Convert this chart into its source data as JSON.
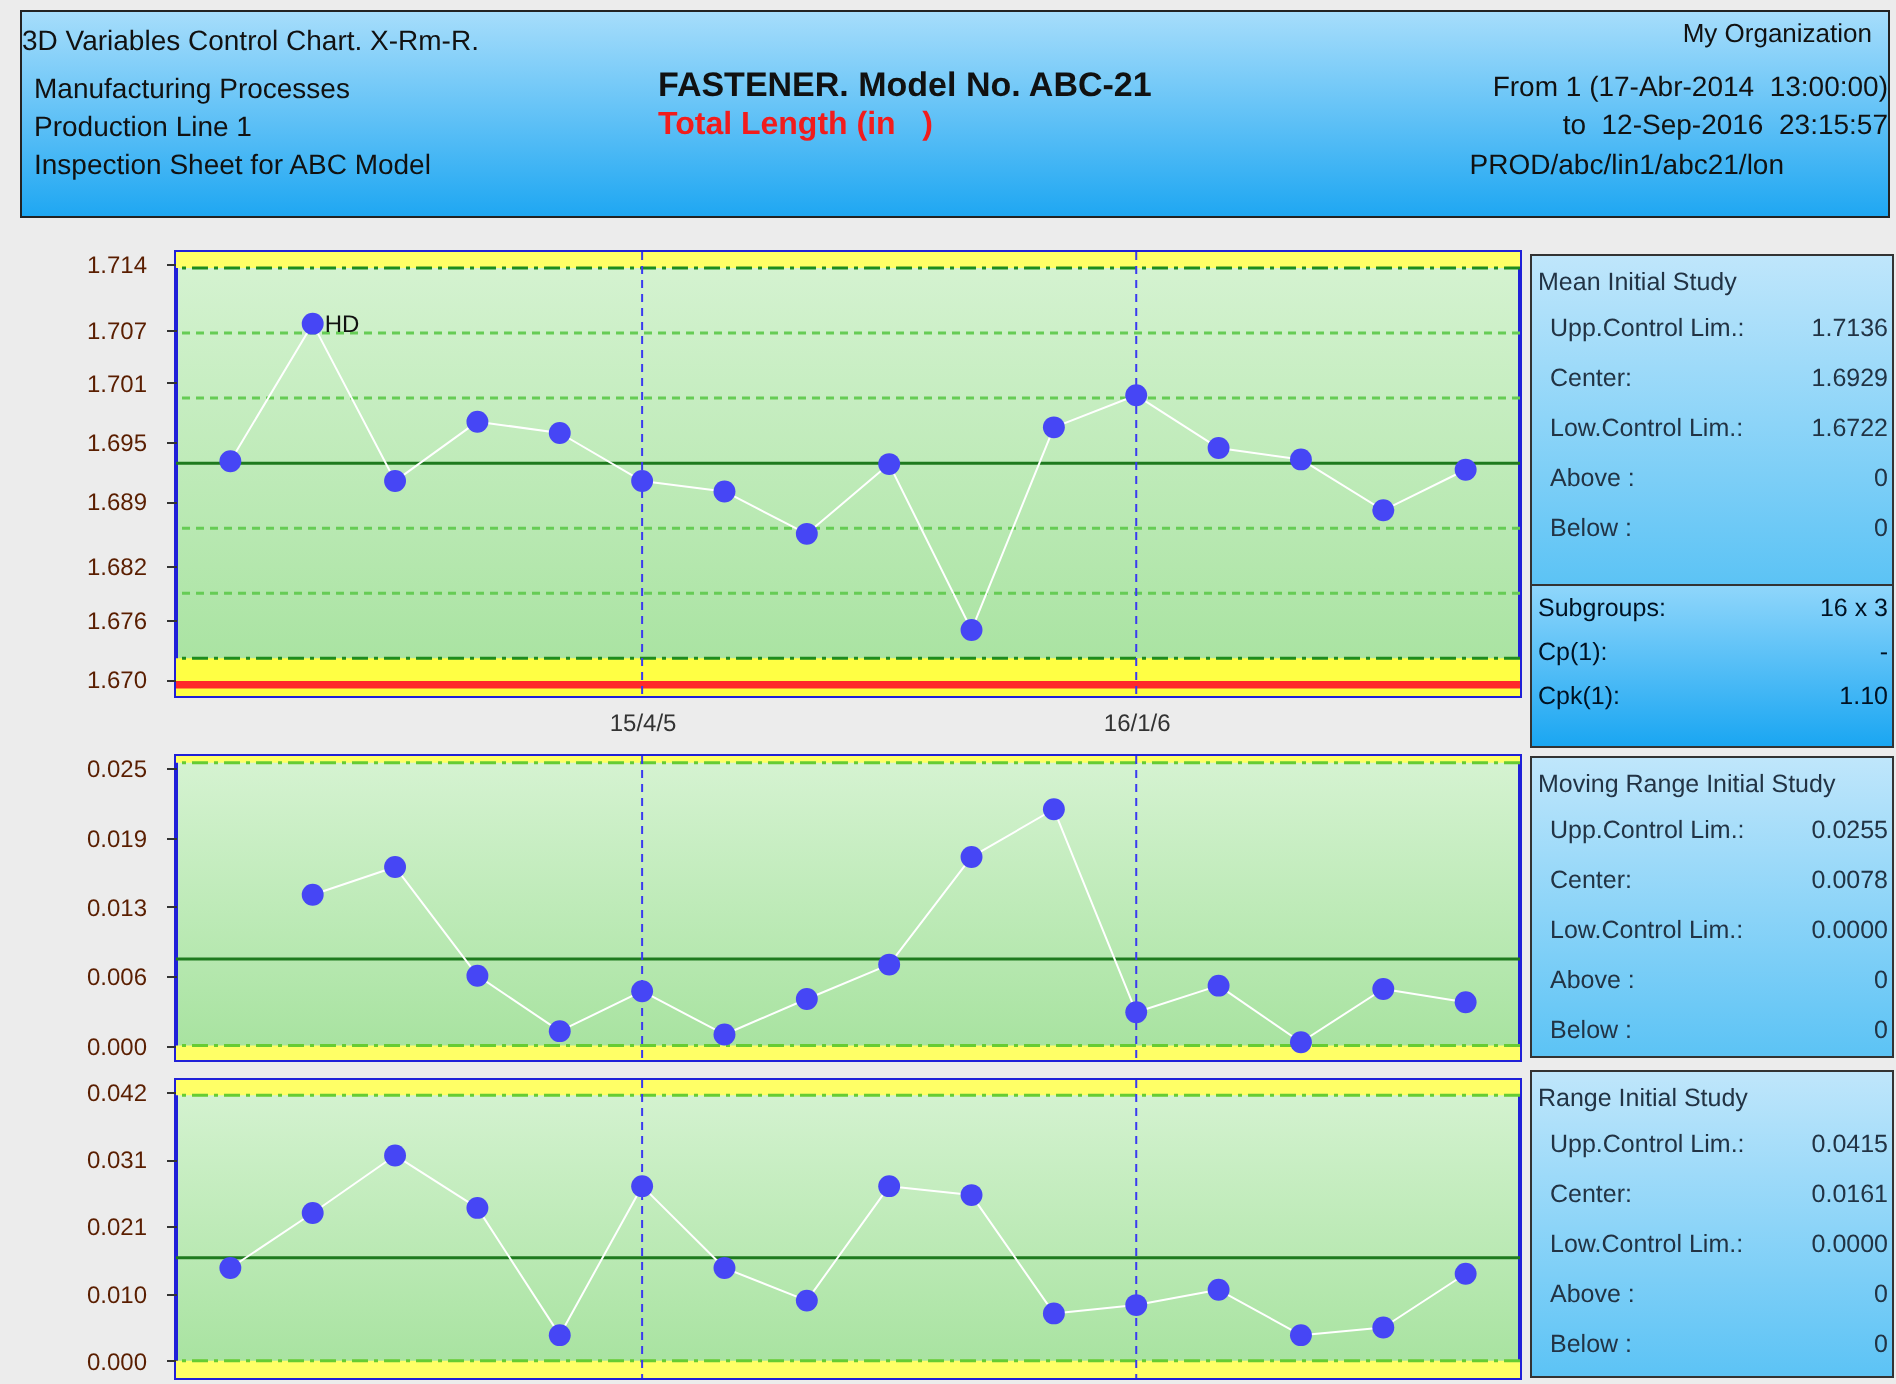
{
  "chart_data": [
    {
      "type": "other",
      "title": "FASTENER. Model No. ABC-21",
      "subtitle": "Total Length (in   )",
      "annotations": [
        "3D Variables Control Chart. X-Rm-R.",
        "Manufacturing Processes",
        "Production Line 1",
        "Inspection Sheet for ABC Model",
        "My Organization",
        "From 1 (17-Abr-2014  13:00:00)",
        "to  12-Sep-2016  23:15:57",
        "PROD/abc/lin1/abc21/lon"
      ]
    },
    {
      "type": "line",
      "categories": [
        null,
        null,
        null,
        null,
        null,
        "15/4/5",
        null,
        null,
        null,
        null,
        null,
        "16/1/6",
        null,
        null,
        null,
        null
      ],
      "series": [
        {
          "color": "#4646f5",
          "values": [
            1.6931,
            1.7077,
            1.691,
            1.6973,
            1.6961,
            1.691,
            1.6899,
            1.6854,
            1.6928,
            1.6752,
            1.6967,
            1.7001,
            1.6945,
            1.6933,
            1.6879,
            1.6922
          ]
        }
      ],
      "ylim": [
        1.6682,
        1.7153
      ],
      "yticks": [
        {
          "value": 1.67,
          "label": "1.670"
        },
        {
          "value": 1.67629,
          "label": "1.676"
        },
        {
          "value": 1.682,
          "label": "1.682"
        },
        {
          "value": 1.68886,
          "label": "1.689"
        },
        {
          "value": 1.69514,
          "label": "1.695"
        },
        {
          "value": 1.70143,
          "label": "1.701"
        },
        {
          "value": 1.707,
          "label": "1.707"
        },
        {
          "value": 1.714,
          "label": "1.714"
        }
      ],
      "bands": [
        {
          "axis": "y",
          "from": 1.7136,
          "to": 1.7153,
          "color": "#ffff66"
        },
        {
          "axis": "y",
          "from": 1.6682,
          "to": 1.6722,
          "color": "#ffff44"
        },
        {
          "axis": "y",
          "from": 1.669,
          "to": 1.6698,
          "color": "#ff2a2a"
        }
      ],
      "ref_lines": [
        {
          "axis": "y",
          "value": 1.7136,
          "color": "#1e8c1e",
          "line_style": "dashdot"
        },
        {
          "axis": "y",
          "value": 1.7067,
          "color": "#66cc55",
          "line_style": "dashed"
        },
        {
          "axis": "y",
          "value": 1.6998,
          "color": "#66cc55",
          "line_style": "dashed"
        },
        {
          "axis": "y",
          "value": 1.6929,
          "color": "#1e7a1e",
          "line_style": "solid"
        },
        {
          "axis": "y",
          "value": 1.686,
          "color": "#66cc55",
          "line_style": "dashed"
        },
        {
          "axis": "y",
          "value": 1.6791,
          "color": "#66cc55",
          "line_style": "dashed"
        },
        {
          "axis": "y",
          "value": 1.6722,
          "color": "#1e8c1e",
          "line_style": "dashdot"
        },
        {
          "axis": "x",
          "value": "15/4/5",
          "color": "#3a3af0",
          "line_style": "dashed"
        },
        {
          "axis": "x",
          "value": "16/1/6",
          "color": "#3a3af0",
          "line_style": "dashed"
        }
      ],
      "annotations": [
        {
          "text": "HD",
          "y": 1.7077
        }
      ],
      "marker": "circle",
      "line_style": "solid",
      "grid": false
    },
    {
      "type": "line",
      "categories": [
        null,
        null,
        null,
        null,
        null,
        "15/4/5",
        null,
        null,
        null,
        null,
        null,
        "16/1/6",
        null,
        null,
        null,
        null
      ],
      "series": [
        {
          "color": "#4646f5",
          "values": [
            null,
            0.0136,
            0.0161,
            0.0063,
            0.0013,
            0.0049,
            0.001,
            0.0042,
            0.0073,
            0.017,
            0.0213,
            0.003,
            0.0054,
            0.0003,
            0.0051,
            0.0039
          ]
        }
      ],
      "ylim": [
        -0.0013,
        0.0261
      ],
      "yticks": [
        {
          "value": 0,
          "label": "0.000"
        },
        {
          "value": 0.00625,
          "label": "0.006"
        },
        {
          "value": 0.0125,
          "label": "0.013"
        },
        {
          "value": 0.01875,
          "label": "0.019"
        },
        {
          "value": 0.025,
          "label": "0.025"
        }
      ],
      "bands": [
        {
          "axis": "y",
          "from": 0.0255,
          "to": 0.0261,
          "color": "#ffff66"
        },
        {
          "axis": "y",
          "from": -0.0013,
          "to": 0,
          "color": "#ffff66"
        }
      ],
      "ref_lines": [
        {
          "axis": "y",
          "value": 0.0255,
          "color": "#66cc33",
          "line_style": "dashdot"
        },
        {
          "axis": "y",
          "value": 0.0078,
          "color": "#1e7a1e",
          "line_style": "solid"
        },
        {
          "axis": "y",
          "value": 0,
          "color": "#66cc33",
          "line_style": "dashdot"
        },
        {
          "axis": "x",
          "value": "15/4/5",
          "color": "#3a3af0",
          "line_style": "dashed"
        },
        {
          "axis": "x",
          "value": "16/1/6",
          "color": "#3a3af0",
          "line_style": "dashed"
        }
      ],
      "tick_labels": "y",
      "marker": "circle",
      "line_style": "solid",
      "grid": false
    },
    {
      "type": "line",
      "categories": [
        null,
        null,
        null,
        null,
        null,
        "15/4/5",
        null,
        null,
        null,
        null,
        null,
        "16/1/6",
        null,
        null,
        null,
        null
      ],
      "series": [
        {
          "color": "#4646f5",
          "values": [
            0.0145,
            0.0231,
            0.0321,
            0.0239,
            0.004,
            0.0273,
            0.0145,
            0.0094,
            0.0273,
            0.0259,
            0.0074,
            0.0087,
            0.0111,
            0.004,
            0.0052,
            0.0136
          ]
        }
      ],
      "ylim": [
        -0.0027,
        0.0439
      ],
      "yticks": [
        {
          "value": 0,
          "label": "0.000"
        },
        {
          "value": 0.0105,
          "label": "0.010"
        },
        {
          "value": 0.021,
          "label": "0.021"
        },
        {
          "value": 0.0315,
          "label": "0.031"
        },
        {
          "value": 0.042,
          "label": "0.042"
        }
      ],
      "bands": [
        {
          "axis": "y",
          "from": 0.0415,
          "to": 0.0439,
          "color": "#ffff66"
        },
        {
          "axis": "y",
          "from": -0.0027,
          "to": 0,
          "color": "#ffff66"
        }
      ],
      "ref_lines": [
        {
          "axis": "y",
          "value": 0.0415,
          "color": "#66cc33",
          "line_style": "dashdot"
        },
        {
          "axis": "y",
          "value": 0.0161,
          "color": "#1e7a1e",
          "line_style": "solid"
        },
        {
          "axis": "y",
          "value": 0,
          "color": "#66cc33",
          "line_style": "dashdot"
        },
        {
          "axis": "x",
          "value": "15/4/5",
          "color": "#3a3af0",
          "line_style": "dashed"
        },
        {
          "axis": "x",
          "value": "16/1/6",
          "color": "#3a3af0",
          "line_style": "dashed"
        }
      ],
      "tick_labels": "y",
      "marker": "circle",
      "line_style": "solid",
      "grid": false
    },
    {
      "type": "other",
      "title": "Mean Initial Study",
      "annotations": [
        "Upp.Control Lim.:",
        "1.7136",
        "Center:",
        "1.6929",
        "Low.Control Lim.:",
        "1.6722",
        "Above :",
        "0",
        "Below :",
        "0"
      ]
    },
    {
      "type": "other",
      "annotations": [
        "Subgroups:",
        "16 x 3",
        "Cp(1):",
        "-",
        "Cpk(1):",
        "1.10"
      ]
    },
    {
      "type": "other",
      "title": "Moving Range Initial Study",
      "annotations": [
        "Upp.Control Lim.:",
        "0.0255",
        "Center:",
        "0.0078",
        "Low.Control Lim.:",
        "0.0000",
        "Above :",
        "0",
        "Below :",
        "0"
      ]
    },
    {
      "type": "other",
      "title": "Range Initial Study",
      "annotations": [
        "Upp.Control Lim.:",
        "0.0415",
        "Center:",
        "0.0161",
        "Low.Control Lim.:",
        "0.0000",
        "Above :",
        "0",
        "Below :",
        "0"
      ]
    }
  ]
}
